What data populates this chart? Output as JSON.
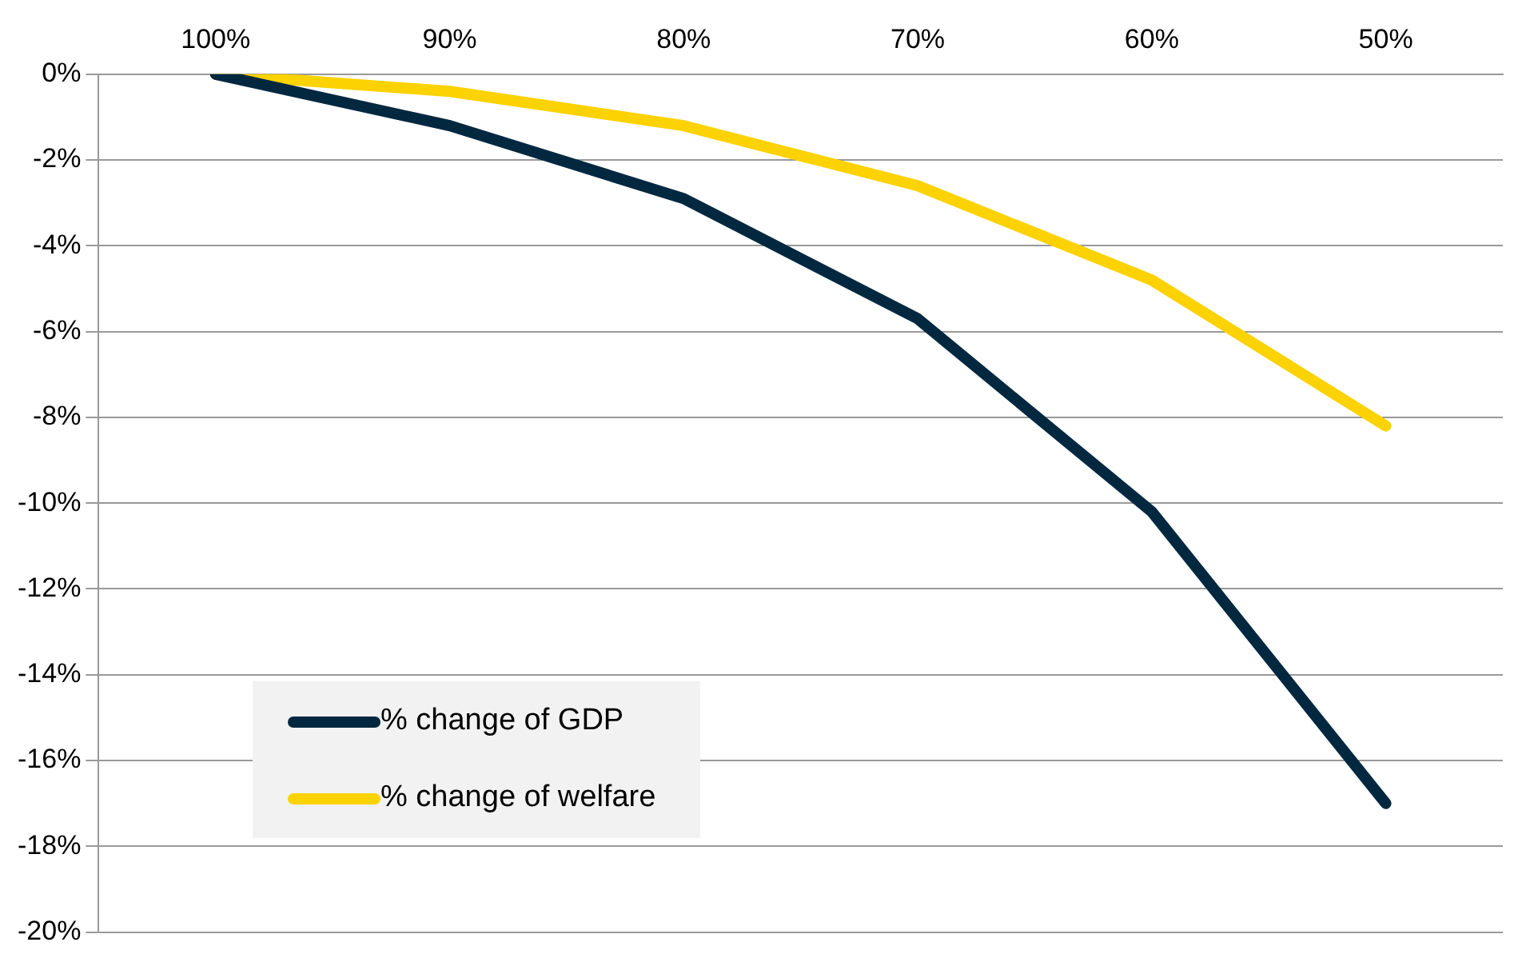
{
  "chart_data": {
    "type": "line",
    "categories": [
      "100%",
      "90%",
      "80%",
      "70%",
      "60%",
      "50%"
    ],
    "series": [
      {
        "name": "% change of GDP",
        "color": "#022840",
        "values": [
          0,
          -1.2,
          -2.9,
          -5.7,
          -10.2,
          -17.0
        ]
      },
      {
        "name": "% change of welfare",
        "color": "#fcd200",
        "values": [
          0,
          -0.4,
          -1.2,
          -2.6,
          -4.8,
          -8.2
        ]
      }
    ],
    "ylim": [
      -20,
      0
    ],
    "yticks": [
      {
        "value": -20,
        "label": "-20%"
      },
      {
        "value": -18,
        "label": "-18%"
      },
      {
        "value": -16,
        "label": "-16%"
      },
      {
        "value": -14,
        "label": "-14%"
      },
      {
        "value": -12,
        "label": "-12%"
      },
      {
        "value": -10,
        "label": "-10%"
      },
      {
        "value": -8,
        "label": "-8%"
      },
      {
        "value": -6,
        "label": "-6%"
      },
      {
        "value": -4,
        "label": "-4%"
      },
      {
        "value": -2,
        "label": "-2%"
      },
      {
        "value": 0,
        "label": "0%"
      }
    ],
    "grid": "y",
    "legend": "bottom left",
    "marker": "none",
    "line_style": "solid"
  }
}
